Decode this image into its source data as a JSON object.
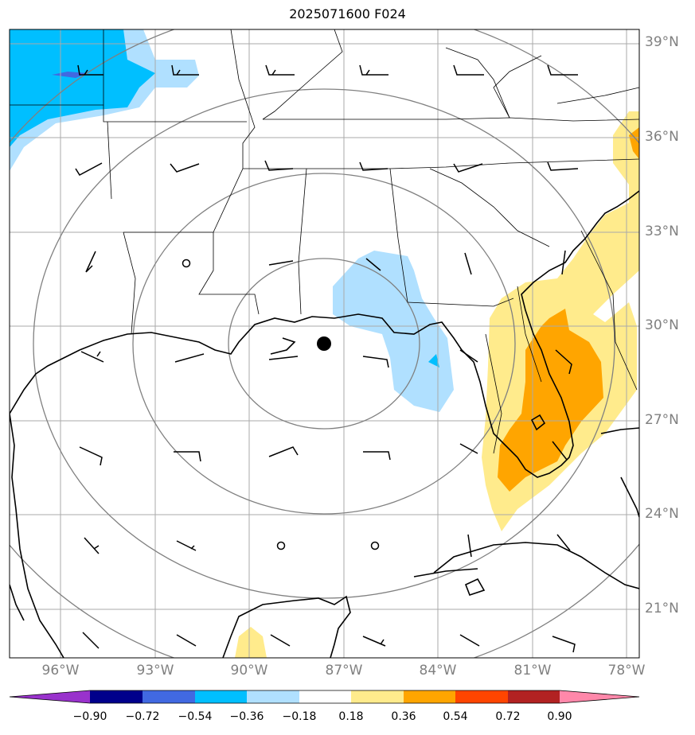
{
  "title": "2025071600 F024",
  "lat_labels": [
    "39°N",
    "36°N",
    "33°N",
    "30°N",
    "27°N",
    "24°N",
    "21°N"
  ],
  "lon_labels": [
    "96°W",
    "93°W",
    "90°W",
    "87°W",
    "84°W",
    "81°W",
    "78°W"
  ],
  "colorbar": {
    "labels": [
      "−0.90",
      "−0.72",
      "−0.54",
      "−0.36",
      "−0.18",
      "0.18",
      "0.36",
      "0.54",
      "0.72",
      "0.90"
    ],
    "colors": [
      "#9932cc",
      "#00008b",
      "#4169e1",
      "#00bfff",
      "#b0e0ff",
      "#ffffff",
      "#ffeb8c",
      "#ffa500",
      "#ff4500",
      "#b22222",
      "#ff88aa"
    ]
  },
  "storm_center": "black-dot",
  "colors": {
    "grid": "#aaaaaa",
    "range_rings": "#808080",
    "coast": "#000000"
  }
}
